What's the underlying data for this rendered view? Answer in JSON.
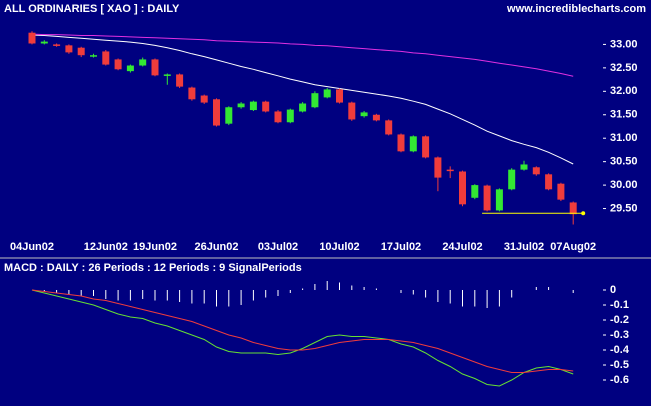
{
  "chart_data": [
    {
      "type": "candlestick",
      "title": "ALL ORDINARIES  [ XAO ] : DAILY",
      "source": "www.incrediblecharts.com",
      "categories": [
        "04Jun02",
        null,
        null,
        null,
        null,
        null,
        "12Jun02",
        null,
        null,
        null,
        "19Jun02",
        null,
        null,
        null,
        null,
        "26Jun02",
        null,
        null,
        null,
        null,
        "03Jul02",
        null,
        null,
        null,
        null,
        "10Jul02",
        null,
        null,
        null,
        null,
        "17Jul02",
        null,
        null,
        null,
        null,
        "24Jul02",
        null,
        null,
        null,
        null,
        "31Jul02",
        null,
        null,
        null,
        "07Aug02"
      ],
      "open": [
        33.25,
        33.02,
        33.0,
        32.98,
        32.93,
        32.75,
        32.85,
        32.68,
        32.43,
        32.55,
        32.68,
        32.34,
        32.36,
        32.08,
        31.91,
        31.83,
        31.31,
        31.66,
        31.6,
        31.78,
        31.57,
        31.34,
        31.57,
        31.66,
        31.87,
        32.04,
        31.76,
        31.47,
        31.5,
        31.38,
        31.08,
        30.72,
        31.04,
        30.59,
        30.33,
        30.29,
        29.73,
        29.99,
        29.46,
        29.91,
        30.33,
        30.38,
        30.23,
        30.03,
        29.63
      ],
      "high": [
        33.28,
        33.09,
        33.02,
        33.0,
        32.95,
        32.8,
        32.88,
        32.7,
        32.57,
        32.72,
        32.7,
        32.38,
        32.38,
        32.1,
        31.93,
        31.85,
        31.68,
        31.77,
        31.8,
        31.8,
        31.6,
        31.63,
        31.77,
        32.0,
        32.07,
        32.06,
        31.78,
        31.58,
        31.52,
        31.4,
        31.1,
        31.06,
        31.06,
        30.61,
        30.4,
        30.31,
        30.02,
        30.01,
        29.93,
        30.36,
        30.52,
        30.4,
        30.25,
        30.05,
        29.65
      ],
      "low": [
        33.0,
        33.0,
        32.95,
        32.8,
        32.73,
        32.72,
        32.55,
        32.45,
        32.4,
        32.53,
        32.32,
        32.14,
        32.07,
        31.8,
        31.73,
        31.25,
        31.28,
        31.63,
        31.58,
        31.55,
        31.32,
        31.32,
        31.55,
        31.64,
        31.85,
        31.74,
        31.37,
        31.44,
        31.36,
        31.06,
        30.7,
        30.7,
        30.57,
        29.87,
        30.15,
        29.55,
        29.7,
        29.44,
        29.44,
        29.89,
        30.31,
        30.2,
        29.89,
        29.66,
        29.16
      ],
      "close": [
        33.02,
        33.06,
        32.98,
        32.83,
        32.77,
        32.77,
        32.57,
        32.47,
        32.55,
        32.68,
        32.34,
        32.36,
        32.1,
        31.83,
        31.76,
        31.27,
        31.66,
        31.74,
        31.78,
        31.57,
        31.34,
        31.61,
        31.74,
        31.96,
        32.04,
        31.76,
        31.4,
        31.55,
        31.38,
        31.08,
        30.72,
        31.04,
        30.59,
        30.16,
        30.3,
        29.59,
        30.0,
        29.46,
        29.91,
        30.33,
        30.44,
        30.23,
        29.91,
        29.69,
        29.38
      ],
      "up_color": "#33e833",
      "down_color": "#f03c3c",
      "moving_averages": [
        {
          "color": "#ffffff",
          "values": [
            33.2,
            33.19,
            33.17,
            33.15,
            33.13,
            33.11,
            33.09,
            33.07,
            33.05,
            33.02,
            32.98,
            32.93,
            32.87,
            32.8,
            32.74,
            32.67,
            32.6,
            32.53,
            32.47,
            32.4,
            32.33,
            32.26,
            32.2,
            32.14,
            32.1,
            32.06,
            32.02,
            31.98,
            31.94,
            31.9,
            31.85,
            31.79,
            31.72,
            31.62,
            31.52,
            31.4,
            31.28,
            31.15,
            31.05,
            30.95,
            30.87,
            30.8,
            30.7,
            30.58,
            30.45
          ]
        },
        {
          "color": "#e030e0",
          "values": [
            33.22,
            33.21,
            33.21,
            33.2,
            33.19,
            33.19,
            33.18,
            33.17,
            33.16,
            33.15,
            33.14,
            33.13,
            33.12,
            33.11,
            33.1,
            33.08,
            33.07,
            33.06,
            33.05,
            33.04,
            33.03,
            33.01,
            33.0,
            32.98,
            32.97,
            32.95,
            32.93,
            32.91,
            32.89,
            32.87,
            32.85,
            32.82,
            32.8,
            32.77,
            32.74,
            32.71,
            32.68,
            32.64,
            32.6,
            32.56,
            32.52,
            32.48,
            32.43,
            32.38,
            32.32
          ]
        }
      ],
      "support_line": {
        "value": 29.4,
        "start": 37,
        "end": 44,
        "color": "#ffff00"
      },
      "ylim": [
        29.0,
        33.35
      ],
      "yticks": [
        {
          "value": 29.5,
          "label": "29.50"
        },
        {
          "value": 30,
          "label": "30.00"
        },
        {
          "value": 30.5,
          "label": "30.50"
        },
        {
          "value": 31,
          "label": "31.00"
        },
        {
          "value": 31.5,
          "label": "31.50"
        },
        {
          "value": 32,
          "label": "32.00"
        },
        {
          "value": 32.5,
          "label": "32.50"
        },
        {
          "value": 33,
          "label": "33.00"
        }
      ]
    },
    {
      "type": "macd",
      "title": "MACD : DAILY : 26 Periods : 12 Periods : 9 SignalPeriods",
      "series": [
        {
          "color": "#66e033",
          "values": [
            0,
            -0.02,
            -0.04,
            -0.06,
            -0.08,
            -0.1,
            -0.13,
            -0.16,
            -0.18,
            -0.19,
            -0.22,
            -0.24,
            -0.27,
            -0.3,
            -0.33,
            -0.38,
            -0.41,
            -0.42,
            -0.42,
            -0.42,
            -0.43,
            -0.42,
            -0.39,
            -0.35,
            -0.31,
            -0.3,
            -0.31,
            -0.31,
            -0.32,
            -0.33,
            -0.36,
            -0.38,
            -0.42,
            -0.47,
            -0.51,
            -0.56,
            -0.59,
            -0.63,
            -0.64,
            -0.6,
            -0.55,
            -0.52,
            -0.51,
            -0.53,
            -0.56
          ]
        },
        {
          "color": "#f03c3c",
          "values": [
            0,
            -0.01,
            -0.02,
            -0.03,
            -0.04,
            -0.06,
            -0.07,
            -0.09,
            -0.11,
            -0.13,
            -0.15,
            -0.17,
            -0.19,
            -0.21,
            -0.24,
            -0.27,
            -0.3,
            -0.32,
            -0.35,
            -0.37,
            -0.39,
            -0.4,
            -0.4,
            -0.39,
            -0.37,
            -0.35,
            -0.34,
            -0.33,
            -0.33,
            -0.33,
            -0.34,
            -0.35,
            -0.37,
            -0.39,
            -0.42,
            -0.45,
            -0.48,
            -0.51,
            -0.53,
            -0.55,
            -0.55,
            -0.54,
            -0.53,
            -0.53,
            -0.54
          ]
        }
      ],
      "histogram": {
        "color": "#ffffff",
        "values": [
          0,
          -0.01,
          -0.02,
          -0.03,
          -0.04,
          -0.04,
          -0.06,
          -0.07,
          -0.07,
          -0.06,
          -0.07,
          -0.07,
          -0.08,
          -0.09,
          -0.09,
          -0.11,
          -0.11,
          -0.1,
          -0.07,
          -0.05,
          -0.04,
          -0.02,
          0.01,
          0.04,
          0.06,
          0.05,
          0.03,
          0.02,
          0.01,
          0,
          -0.02,
          -0.03,
          -0.05,
          -0.08,
          -0.09,
          -0.11,
          -0.11,
          -0.12,
          -0.11,
          -0.05,
          0,
          0.02,
          0.02,
          0,
          -0.02
        ]
      },
      "ylim": [
        -0.7,
        0.08
      ],
      "yticks": [
        0,
        -0.1,
        -0.2,
        -0.3,
        -0.4,
        -0.5,
        -0.6
      ]
    }
  ]
}
